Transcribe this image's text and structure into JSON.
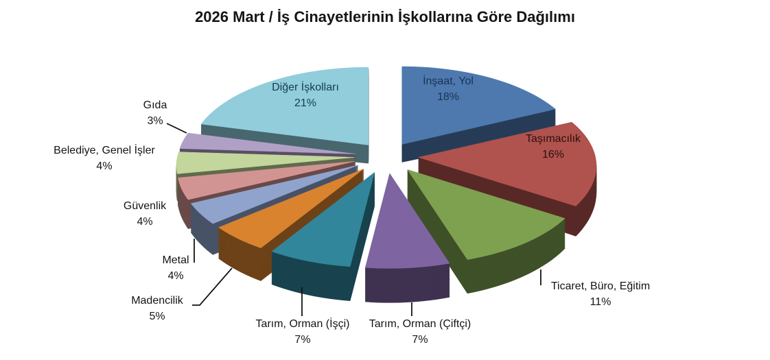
{
  "chart_data": {
    "type": "pie",
    "style": "3d-exploded",
    "title": "2026 Mart / İş Cinayetlerinin İşkollarına Göre Dağılımı",
    "unit": "percent",
    "total": 100,
    "start_angle_deg": 0,
    "direction": "clockwise",
    "legend": "none",
    "background": "#ffffff",
    "outside_label_color": "#141414",
    "slices": [
      {
        "id": "insaat-yol",
        "label": "İnşaat, Yol",
        "value": 18,
        "pct_text": "18%",
        "color": "#4d79ae",
        "label_placement": "inside",
        "label_color": "#1a3354"
      },
      {
        "id": "tasimacilik",
        "label": "Taşımacılık",
        "value": 16,
        "pct_text": "16%",
        "color": "#b0524d",
        "label_placement": "inside",
        "label_color": "#2b1110"
      },
      {
        "id": "ticaret-buro-egitim",
        "label": "Ticaret, Büro, Eğitim",
        "value": 11,
        "pct_text": "11%",
        "color": "#7ea150",
        "label_placement": "outside"
      },
      {
        "id": "tarim-orman-ciftci",
        "label": "Tarım, Orman (Çiftçi)",
        "value": 7,
        "pct_text": "7%",
        "color": "#7e64a0",
        "label_placement": "outside"
      },
      {
        "id": "tarim-orman-isci",
        "label": "Tarım, Orman (İşçi)",
        "value": 7,
        "pct_text": "7%",
        "color": "#31869b",
        "label_placement": "outside"
      },
      {
        "id": "madencilik",
        "label": "Madencilik",
        "value": 5,
        "pct_text": "5%",
        "color": "#d9832f",
        "label_placement": "outside"
      },
      {
        "id": "metal",
        "label": "Metal",
        "value": 4,
        "pct_text": "4%",
        "color": "#8fa3cd",
        "label_placement": "outside"
      },
      {
        "id": "guvenlik",
        "label": "Güvenlik",
        "value": 4,
        "pct_text": "4%",
        "color": "#d29492",
        "label_placement": "outside"
      },
      {
        "id": "belediye-genel-isler",
        "label": "Belediye, Genel İşler",
        "value": 4,
        "pct_text": "4%",
        "color": "#c3d69b",
        "label_placement": "outside"
      },
      {
        "id": "gida",
        "label": "Gıda",
        "value": 3,
        "pct_text": "3%",
        "color": "#b0a0c6",
        "label_placement": "outside"
      },
      {
        "id": "diger-iskollari",
        "label": "Diğer İşkolları",
        "value": 21,
        "pct_text": "21%",
        "color": "#92cddc",
        "label_placement": "inside",
        "label_color": "#14404e"
      }
    ]
  }
}
